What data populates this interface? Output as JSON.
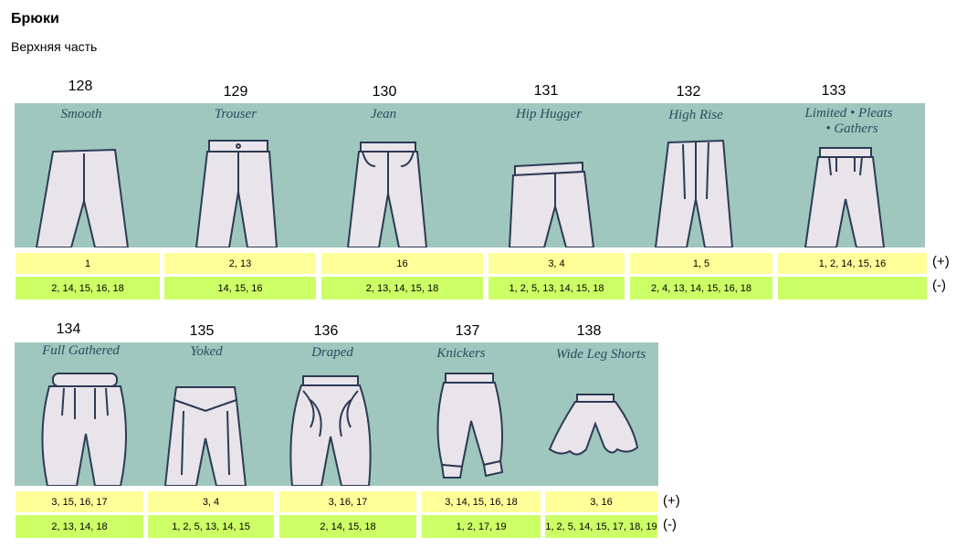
{
  "page": {
    "title": "Брюки",
    "subtitle": "Верхняя часть"
  },
  "legend": {
    "plus": "(+)",
    "minus": "(-)"
  },
  "colors": {
    "strip_background": "#9fc7bd",
    "plus_row": "#ffff99",
    "minus_row": "#ccff66",
    "sketch_label": "#2d4a60"
  },
  "rows": [
    {
      "items": [
        {
          "number": "128",
          "name": "Smooth",
          "plus": "1",
          "minus": "2, 14, 15, 16, 18"
        },
        {
          "number": "129",
          "name": "Trouser",
          "plus": "2, 13",
          "minus": "14, 15, 16"
        },
        {
          "number": "130",
          "name": "Jean",
          "plus": "16",
          "minus": "2, 13, 14, 15, 18"
        },
        {
          "number": "131",
          "name": "Hip Hugger",
          "plus": "3, 4",
          "minus": "1, 2, 5, 13, 14, 15, 18"
        },
        {
          "number": "132",
          "name": "High Rise",
          "plus": "1, 5",
          "minus": "2, 4, 13, 14, 15, 16, 18"
        },
        {
          "number": "133",
          "name": "Limited • Pleats",
          "name2": "• Gathers",
          "plus": "1, 2, 14, 15, 16",
          "minus": ""
        }
      ]
    },
    {
      "items": [
        {
          "number": "134",
          "name": "Full Gathered",
          "plus": "3, 15, 16, 17",
          "minus": "2, 13, 14, 18"
        },
        {
          "number": "135",
          "name": "Yoked",
          "plus": "3, 4",
          "minus": "1, 2, 5, 13, 14, 15"
        },
        {
          "number": "136",
          "name": "Draped",
          "plus": "3, 16, 17",
          "minus": "2, 14, 15, 18"
        },
        {
          "number": "137",
          "name": "Knickers",
          "plus": "3, 14, 15, 16, 18",
          "minus": "1, 2, 17, 19"
        },
        {
          "number": "138",
          "name": "Wide Leg Shorts",
          "plus": "3, 16",
          "minus": "1, 2, 5, 14, 15, 17, 18, 19"
        }
      ]
    }
  ]
}
